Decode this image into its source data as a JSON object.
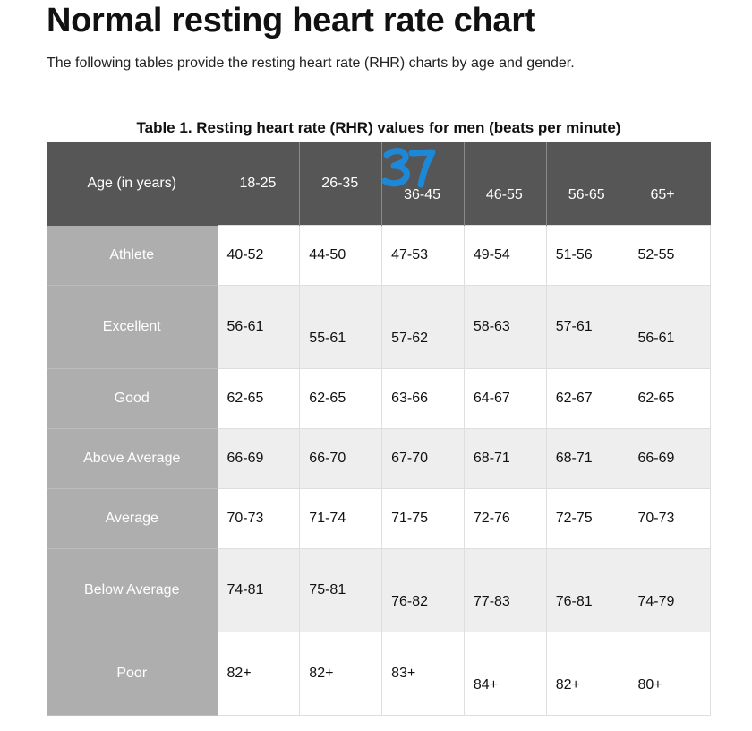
{
  "page": {
    "title": "Normal resting heart rate chart",
    "intro": "The following tables provide the resting heart rate (RHR) charts by age and gender."
  },
  "table": {
    "caption": "Table 1. Resting heart rate (RHR) values for men (beats per minute)",
    "headers": [
      "Age (in years)",
      "18-25",
      "26-35",
      "36-45",
      "46-55",
      "56-65",
      "65+"
    ],
    "rows": [
      {
        "label": "Athlete",
        "values": [
          "40-52",
          "44-50",
          "47-53",
          "49-54",
          "51-56",
          "52-55"
        ]
      },
      {
        "label": "Excellent",
        "values": [
          "56-61",
          "55-61",
          "57-62",
          "58-63",
          "57-61",
          "56-61"
        ]
      },
      {
        "label": "Good",
        "values": [
          "62-65",
          "62-65",
          "63-66",
          "64-67",
          "62-67",
          "62-65"
        ]
      },
      {
        "label": "Above Average",
        "values": [
          "66-69",
          "66-70",
          "67-70",
          "68-71",
          "68-71",
          "66-69"
        ]
      },
      {
        "label": "Average",
        "values": [
          "70-73",
          "71-74",
          "71-75",
          "72-76",
          "72-75",
          "70-73"
        ]
      },
      {
        "label": "Below Average",
        "values": [
          "74-81",
          "75-81",
          "76-82",
          "77-83",
          "76-81",
          "74-79"
        ]
      },
      {
        "label": "Poor",
        "values": [
          "82+",
          "82+",
          "83+",
          "84+",
          "82+",
          "80+"
        ]
      }
    ]
  },
  "annotation": {
    "handwritten_text": "37",
    "color": "#1e88d8"
  },
  "colors": {
    "header_bg": "#565656",
    "label_col_bg": "#aeaeae",
    "row_alt_bg": "#eeeeee"
  }
}
